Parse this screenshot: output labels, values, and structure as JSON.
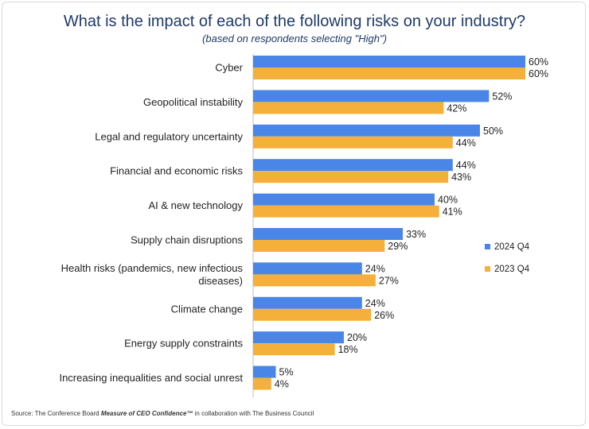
{
  "chart_data": {
    "type": "bar",
    "orientation": "horizontal",
    "title": "What is the impact of each of the following risks on your industry?",
    "subtitle": "(based on respondents selecting \"High\")",
    "categories": [
      [
        "Cyber"
      ],
      [
        "Geopolitical instability"
      ],
      [
        "Legal and regulatory uncertainty"
      ],
      [
        "Financial and economic risks"
      ],
      [
        "AI & new technology"
      ],
      [
        "Supply chain disruptions"
      ],
      [
        "Health risks (pandemics, new infectious",
        "diseases)"
      ],
      [
        "Climate change"
      ],
      [
        "Energy supply constraints"
      ],
      [
        "Increasing inequalities and social unrest"
      ]
    ],
    "series": [
      {
        "name": "2024 Q4",
        "color": "#4a86e8",
        "values": [
          60,
          52,
          50,
          44,
          40,
          33,
          24,
          24,
          20,
          5
        ]
      },
      {
        "name": "2023 Q4",
        "color": "#f4b03a",
        "values": [
          60,
          42,
          44,
          43,
          41,
          29,
          27,
          26,
          18,
          4
        ]
      }
    ],
    "value_suffix": "%",
    "xlim": [
      0,
      60
    ],
    "legend_position": "right"
  },
  "source": {
    "prefix": "Source: The Conference Board ",
    "emphasis": "Measure of CEO Confidence™",
    "suffix": " in collaboration with The Business Council"
  }
}
